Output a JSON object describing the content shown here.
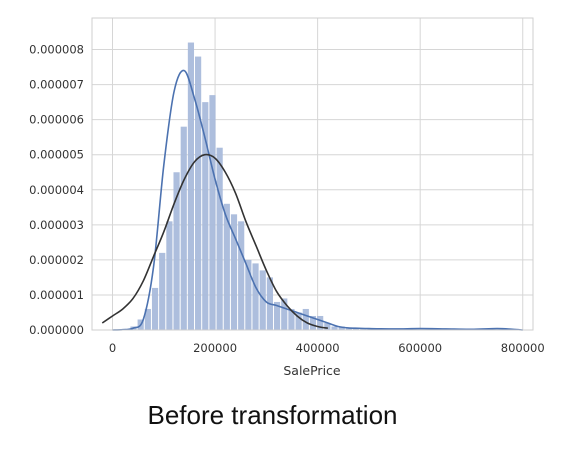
{
  "caption": "Before transformation",
  "chart_data": {
    "type": "histogram",
    "xlabel": "SalePrice",
    "ylabel": "",
    "xlim": [
      -40000,
      820000
    ],
    "ylim": [
      0,
      8.9e-06
    ],
    "x_ticks": [
      0,
      200000,
      400000,
      600000,
      800000
    ],
    "x_tick_labels": [
      "0",
      "200000",
      "400000",
      "600000",
      "800000"
    ],
    "y_ticks": [
      0,
      1e-06,
      2e-06,
      3e-06,
      4e-06,
      5e-06,
      6e-06,
      7e-06,
      8e-06
    ],
    "y_tick_labels": [
      "0.000000",
      "0.000001",
      "0.000002",
      "0.000003",
      "0.000004",
      "0.000005",
      "0.000006",
      "0.000007",
      "0.000008"
    ],
    "grid": true,
    "colors": {
      "bars": "#a9bbdb",
      "kde": "#4c72b0",
      "normal_fit": "#333333",
      "grid": "#d6d6d6",
      "frame": "#cfcfcf"
    },
    "histogram": {
      "bin_start": 34900,
      "bin_width": 14000,
      "densities": [
        1e-07,
        3e-07,
        6e-07,
        1.2e-06,
        2.2e-06,
        3.1e-06,
        4.5e-06,
        5.8e-06,
        8.2e-06,
        7.8e-06,
        6.5e-06,
        6.7e-06,
        5.2e-06,
        3.6e-06,
        3.3e-06,
        3.1e-06,
        2e-06,
        1.9e-06,
        1.7e-06,
        1.5e-06,
        8e-07,
        9e-07,
        6e-07,
        5e-07,
        6e-07,
        4e-07,
        4e-07,
        2e-07,
        1e-07,
        1e-07,
        5e-08,
        3e-08,
        3e-08,
        3e-08,
        2e-08,
        2e-08,
        2e-08,
        2e-08,
        2e-08,
        2e-08,
        2e-08,
        2e-08,
        2e-08,
        2e-08,
        2e-08,
        2e-08,
        2e-08,
        2e-08,
        2e-08,
        2e-08,
        2e-08,
        2e-08
      ]
    },
    "series": [
      {
        "name": "",
        "kind": "kde",
        "x": [
          0,
          20000,
          40000,
          60000,
          80000,
          100000,
          120000,
          140000,
          160000,
          180000,
          200000,
          220000,
          240000,
          260000,
          280000,
          300000,
          320000,
          340000,
          360000,
          380000,
          400000,
          420000,
          440000,
          460000,
          480000,
          500000,
          550000,
          600000,
          650000,
          700000,
          750000,
          780000,
          800000
        ],
        "y": [
          0,
          1e-08,
          5e-08,
          3e-07,
          1.8e-06,
          4.7e-06,
          6.8e-06,
          7.4e-06,
          6.6e-06,
          5.5e-06,
          4.3e-06,
          3.3e-06,
          2.6e-06,
          1.9e-06,
          1.2e-06,
          8e-07,
          7e-07,
          6e-07,
          5e-07,
          4e-07,
          3e-07,
          2e-07,
          1e-07,
          6e-08,
          5e-08,
          4e-08,
          3e-08,
          4e-08,
          3e-08,
          2e-08,
          4e-08,
          2e-08,
          0
        ]
      },
      {
        "name": "",
        "kind": "normal_fit",
        "x": [
          -20000,
          0,
          20000,
          40000,
          60000,
          80000,
          100000,
          120000,
          140000,
          160000,
          180000,
          200000,
          220000,
          240000,
          260000,
          280000,
          300000,
          320000,
          340000,
          360000,
          380000,
          400000,
          420000
        ],
        "y": [
          2e-07,
          4e-07,
          6e-07,
          9e-07,
          1.4e-06,
          2.1e-06,
          2.8e-06,
          3.6e-06,
          4.3e-06,
          4.8e-06,
          5e-06,
          4.9e-06,
          4.5e-06,
          3.9e-06,
          3.1e-06,
          2.4e-06,
          1.7e-06,
          1.1e-06,
          7e-07,
          4e-07,
          2e-07,
          1e-07,
          5e-08
        ]
      }
    ]
  }
}
